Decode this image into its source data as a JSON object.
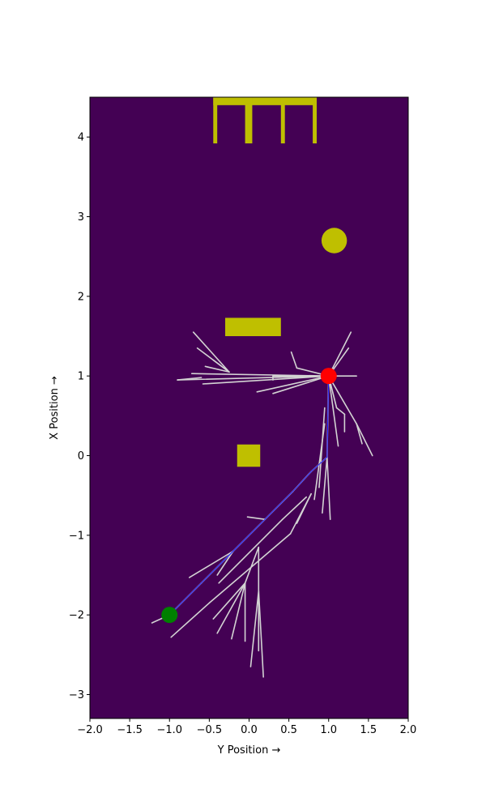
{
  "chart_data": {
    "type": "scatter",
    "title": "",
    "xlabel": "Y Position →",
    "ylabel": "X Position →",
    "xlim": [
      -2.0,
      2.0
    ],
    "ylim": [
      -3.3,
      4.5
    ],
    "xticks": [
      -2.0,
      -1.5,
      -1.0,
      -0.5,
      0.0,
      0.5,
      1.0,
      1.5,
      2.0
    ],
    "xtick_labels": [
      "−2.0",
      "−1.5",
      "−1.0",
      "−0.5",
      "0.0",
      "0.5",
      "1.0",
      "1.5",
      "2.0"
    ],
    "yticks": [
      -3,
      -2,
      -1,
      0,
      1,
      2,
      3,
      4
    ],
    "ytick_labels": [
      "−3",
      "−2",
      "−1",
      "0",
      "1",
      "2",
      "3",
      "4"
    ],
    "grid": false,
    "colors": {
      "background": "#440154",
      "obstacle": "#bfbf00",
      "tree": "#d3d3d3",
      "path": "#0000ff",
      "start": "#008000",
      "goal": "#ff0000"
    },
    "obstacles": {
      "rectangles": [
        {
          "x0": -0.45,
          "x1": 0.85,
          "y0": 4.4,
          "y1": 4.5
        },
        {
          "x0": -0.45,
          "x1": -0.4,
          "y0": 3.92,
          "y1": 4.5
        },
        {
          "x0": -0.05,
          "x1": 0.04,
          "y0": 3.92,
          "y1": 4.5
        },
        {
          "x0": 0.4,
          "x1": 0.45,
          "y0": 3.92,
          "y1": 4.5
        },
        {
          "x0": 0.8,
          "x1": 0.85,
          "y0": 3.92,
          "y1": 4.5
        },
        {
          "x0": -0.3,
          "x1": 0.4,
          "y0": 1.5,
          "y1": 1.73
        },
        {
          "x0": -0.15,
          "x1": 0.14,
          "y0": -0.14,
          "y1": 0.14
        }
      ],
      "circles": [
        {
          "cx": 1.07,
          "cy": 2.7,
          "r": 0.16
        }
      ]
    },
    "start": {
      "x": -1.0,
      "y": -2.0
    },
    "goal": {
      "x": 1.0,
      "y": 1.0
    },
    "path": [
      [
        -1.0,
        -2.0
      ],
      [
        -0.6,
        -1.6
      ],
      [
        -0.2,
        -1.2
      ],
      [
        0.2,
        -0.8
      ],
      [
        0.55,
        -0.45
      ],
      [
        0.78,
        -0.2
      ],
      [
        0.98,
        -0.02
      ],
      [
        1.0,
        1.0
      ]
    ],
    "tree_edges": [
      [
        [
          -1.0,
          -2.0
        ],
        [
          -1.22,
          -2.1
        ]
      ],
      [
        [
          -1.0,
          -2.0
        ],
        [
          -0.6,
          -1.6
        ]
      ],
      [
        [
          -0.6,
          -1.6
        ],
        [
          -0.2,
          -1.2
        ]
      ],
      [
        [
          -0.2,
          -1.2
        ],
        [
          -0.75,
          -1.53
        ]
      ],
      [
        [
          -0.2,
          -1.2
        ],
        [
          -0.4,
          -1.5
        ]
      ],
      [
        [
          -0.2,
          -1.2
        ],
        [
          0.2,
          -0.8
        ]
      ],
      [
        [
          0.2,
          -0.8
        ],
        [
          -0.02,
          -0.77
        ]
      ],
      [
        [
          0.2,
          -0.8
        ],
        [
          0.55,
          -0.45
        ]
      ],
      [
        [
          -0.98,
          -2.28
        ],
        [
          -0.5,
          -1.85
        ]
      ],
      [
        [
          -0.5,
          -1.85
        ],
        [
          0.52,
          -0.98
        ]
      ],
      [
        [
          0.52,
          -0.98
        ],
        [
          0.78,
          -0.48
        ]
      ],
      [
        [
          0.78,
          -0.48
        ],
        [
          0.6,
          -0.85
        ]
      ],
      [
        [
          -0.45,
          -2.05
        ],
        [
          -0.05,
          -1.6
        ]
      ],
      [
        [
          -0.05,
          -1.6
        ],
        [
          -0.05,
          -2.33
        ]
      ],
      [
        [
          -0.05,
          -1.6
        ],
        [
          -0.4,
          -2.23
        ]
      ],
      [
        [
          -0.05,
          -1.6
        ],
        [
          -0.22,
          -2.3
        ]
      ],
      [
        [
          -0.05,
          -1.6
        ],
        [
          0.12,
          -1.15
        ]
      ],
      [
        [
          0.12,
          -1.15
        ],
        [
          0.12,
          -2.45
        ]
      ],
      [
        [
          0.12,
          -1.7
        ],
        [
          0.18,
          -2.78
        ]
      ],
      [
        [
          0.12,
          -1.7
        ],
        [
          0.02,
          -2.65
        ]
      ],
      [
        [
          -0.38,
          -1.6
        ],
        [
          0.42,
          -0.8
        ]
      ],
      [
        [
          0.42,
          -0.8
        ],
        [
          0.72,
          -0.52
        ]
      ],
      [
        [
          0.55,
          -0.45
        ],
        [
          0.78,
          -0.2
        ]
      ],
      [
        [
          0.78,
          -0.2
        ],
        [
          0.98,
          -0.02
        ]
      ],
      [
        [
          0.98,
          -0.02
        ],
        [
          1.0,
          1.0
        ]
      ],
      [
        [
          0.98,
          -0.02
        ],
        [
          1.02,
          -0.8
        ]
      ],
      [
        [
          0.98,
          -0.02
        ],
        [
          0.92,
          -0.72
        ]
      ],
      [
        [
          0.95,
          0.6
        ],
        [
          0.88,
          -0.4
        ]
      ],
      [
        [
          0.95,
          0.4
        ],
        [
          0.82,
          -0.55
        ]
      ],
      [
        [
          1.0,
          1.0
        ],
        [
          1.12,
          0.12
        ]
      ],
      [
        [
          1.0,
          1.0
        ],
        [
          1.1,
          0.6
        ]
      ],
      [
        [
          1.1,
          0.6
        ],
        [
          1.2,
          0.52
        ]
      ],
      [
        [
          1.2,
          0.52
        ],
        [
          1.2,
          0.3
        ]
      ],
      [
        [
          1.0,
          1.0
        ],
        [
          1.35,
          0.4
        ]
      ],
      [
        [
          1.35,
          0.4
        ],
        [
          1.55,
          0.0
        ]
      ],
      [
        [
          1.35,
          0.4
        ],
        [
          1.42,
          0.15
        ]
      ],
      [
        [
          1.0,
          1.0
        ],
        [
          1.35,
          1.0
        ]
      ],
      [
        [
          1.0,
          1.0
        ],
        [
          1.28,
          1.55
        ]
      ],
      [
        [
          1.0,
          1.0
        ],
        [
          1.25,
          1.35
        ]
      ],
      [
        [
          1.0,
          1.0
        ],
        [
          0.6,
          1.1
        ]
      ],
      [
        [
          0.6,
          1.1
        ],
        [
          0.53,
          1.3
        ]
      ],
      [
        [
          1.0,
          1.0
        ],
        [
          0.3,
          1.0
        ]
      ],
      [
        [
          0.3,
          1.0
        ],
        [
          0.3,
          0.95
        ]
      ],
      [
        [
          1.0,
          1.0
        ],
        [
          0.1,
          0.8
        ]
      ],
      [
        [
          1.0,
          1.0
        ],
        [
          0.3,
          0.78
        ]
      ],
      [
        [
          1.0,
          1.0
        ],
        [
          -0.9,
          0.95
        ]
      ],
      [
        [
          -0.9,
          0.95
        ],
        [
          -0.6,
          0.98
        ]
      ],
      [
        [
          1.0,
          1.0
        ],
        [
          -0.58,
          0.9
        ]
      ],
      [
        [
          1.0,
          1.0
        ],
        [
          -0.72,
          1.03
        ]
      ],
      [
        [
          -0.25,
          1.05
        ],
        [
          -0.7,
          1.55
        ]
      ],
      [
        [
          -0.25,
          1.05
        ],
        [
          -0.65,
          1.35
        ]
      ],
      [
        [
          -0.25,
          1.05
        ],
        [
          -0.45,
          1.2
        ]
      ],
      [
        [
          -0.25,
          1.05
        ],
        [
          -0.55,
          1.12
        ]
      ]
    ]
  }
}
